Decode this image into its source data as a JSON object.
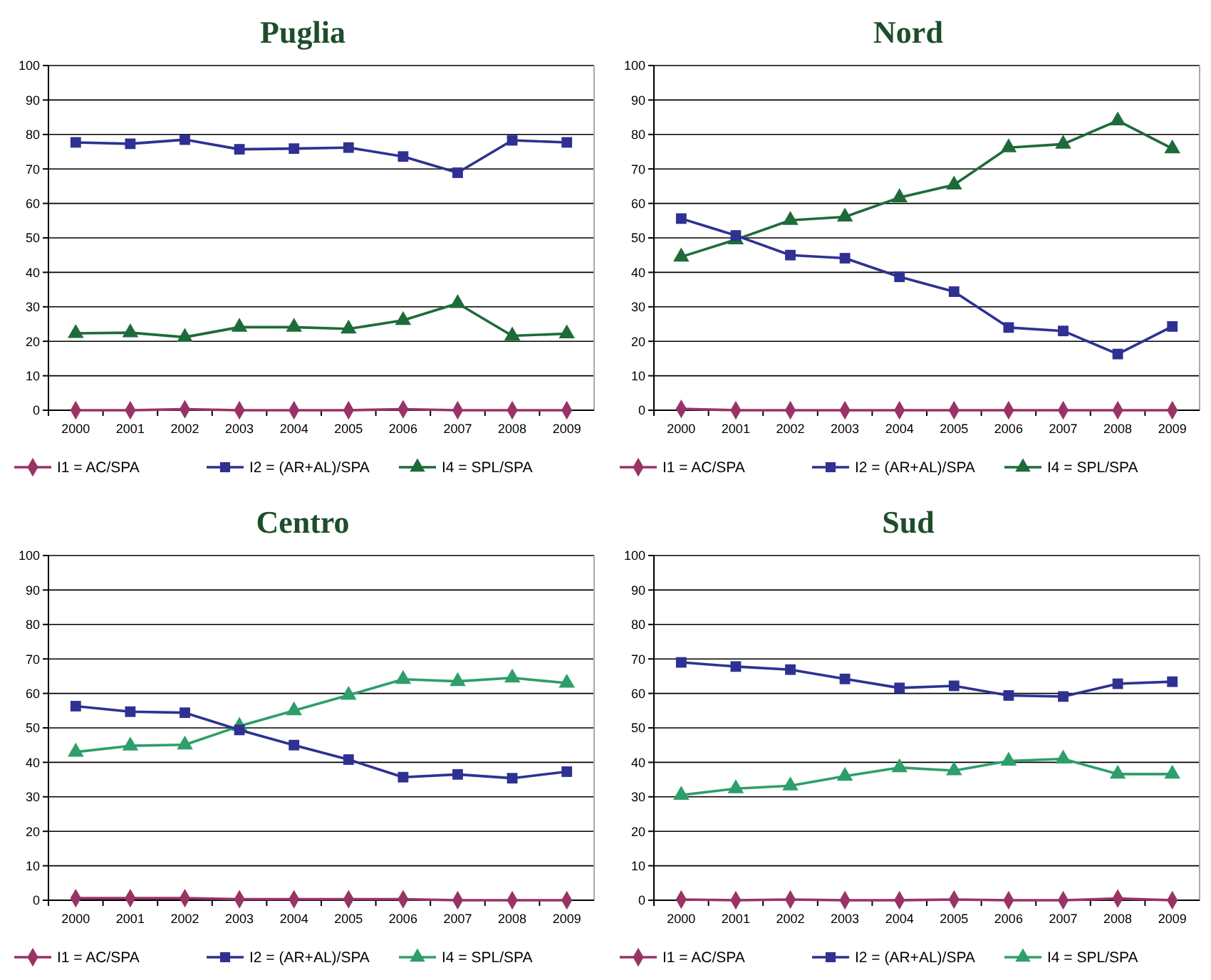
{
  "chart_data": [
    {
      "type": "line",
      "title": "Puglia",
      "categories": [
        "2000",
        "2001",
        "2002",
        "2003",
        "2004",
        "2005",
        "2006",
        "2007",
        "2008",
        "2009"
      ],
      "ylim": [
        0,
        100
      ],
      "yticks": [
        0,
        10,
        20,
        30,
        40,
        50,
        60,
        70,
        80,
        90,
        100
      ],
      "grid": "y",
      "legend": "bottom",
      "line_style": "solid",
      "series": [
        {
          "name": "I1 = AC/SPA",
          "color": "#993366",
          "marker": "diamond",
          "values": [
            0,
            0,
            0.3,
            0,
            0,
            0,
            0.3,
            0,
            0,
            0
          ]
        },
        {
          "name": "I2 = (AR+AL)/SPA",
          "color": "#2e3192",
          "marker": "square",
          "values": [
            77.7,
            77.3,
            78.5,
            75.7,
            75.9,
            76.2,
            73.6,
            68.9,
            78.3,
            77.7
          ]
        },
        {
          "name": "I4 = SPL/SPA",
          "color": "#1e6b3a",
          "marker": "triangle",
          "values": [
            22.3,
            22.5,
            21.2,
            24.1,
            24.1,
            23.6,
            26.1,
            31,
            21.6,
            22.2
          ]
        }
      ]
    },
    {
      "type": "line",
      "title": "Nord",
      "categories": [
        "2000",
        "2001",
        "2002",
        "2003",
        "2004",
        "2005",
        "2006",
        "2007",
        "2008",
        "2009"
      ],
      "ylim": [
        0,
        100
      ],
      "yticks": [
        0,
        10,
        20,
        30,
        40,
        50,
        60,
        70,
        80,
        90,
        100
      ],
      "grid": "y",
      "legend": "bottom",
      "line_style": "solid",
      "series": [
        {
          "name": "I1 = AC/SPA",
          "color": "#993366",
          "marker": "diamond",
          "values": [
            0.4,
            0,
            0,
            0,
            0,
            0,
            0,
            0,
            0,
            0
          ]
        },
        {
          "name": "I2 = (AR+AL)/SPA",
          "color": "#2e3192",
          "marker": "square",
          "values": [
            55.6,
            50.7,
            45,
            44.1,
            38.7,
            34.4,
            24,
            23,
            16.3,
            24.3
          ]
        },
        {
          "name": "I4 = SPL/SPA",
          "color": "#1e6b3a",
          "marker": "triangle",
          "values": [
            44.5,
            49.5,
            55.1,
            56.1,
            61.7,
            65.4,
            76.2,
            77.2,
            84,
            75.9
          ]
        }
      ]
    },
    {
      "type": "line",
      "title": "Centro",
      "categories": [
        "2000",
        "2001",
        "2002",
        "2003",
        "2004",
        "2005",
        "2006",
        "2007",
        "2008",
        "2009"
      ],
      "ylim": [
        0,
        100
      ],
      "yticks": [
        0,
        10,
        20,
        30,
        40,
        50,
        60,
        70,
        80,
        90,
        100
      ],
      "grid": "y",
      "legend": "bottom",
      "line_style": "solid",
      "series": [
        {
          "name": "I1 = AC/SPA",
          "color": "#993366",
          "marker": "diamond",
          "values": [
            0.6,
            0.6,
            0.6,
            0.3,
            0.3,
            0.3,
            0.3,
            0,
            0,
            0
          ]
        },
        {
          "name": "I2 = (AR+AL)/SPA",
          "color": "#2e3192",
          "marker": "square",
          "values": [
            56.3,
            54.7,
            54.4,
            49.4,
            45,
            40.8,
            35.7,
            36.5,
            35.4,
            37.3
          ]
        },
        {
          "name": "I4 = SPL/SPA",
          "color": "#2e9e6b",
          "marker": "triangle",
          "values": [
            43,
            44.8,
            45.1,
            50.5,
            55,
            59.5,
            64.1,
            63.5,
            64.5,
            63
          ]
        }
      ]
    },
    {
      "type": "line",
      "title": "Sud",
      "categories": [
        "2000",
        "2001",
        "2002",
        "2003",
        "2004",
        "2005",
        "2006",
        "2007",
        "2008",
        "2009"
      ],
      "ylim": [
        0,
        100
      ],
      "yticks": [
        0,
        10,
        20,
        30,
        40,
        50,
        60,
        70,
        80,
        90,
        100
      ],
      "grid": "y",
      "legend": "bottom",
      "line_style": "solid",
      "series": [
        {
          "name": "I1 = AC/SPA",
          "color": "#993366",
          "marker": "diamond",
          "values": [
            0.2,
            0,
            0.2,
            0,
            0,
            0.2,
            0,
            0,
            0.5,
            0
          ]
        },
        {
          "name": "I2 = (AR+AL)/SPA",
          "color": "#2e3192",
          "marker": "square",
          "values": [
            69,
            67.8,
            66.9,
            64.2,
            61.6,
            62.2,
            59.4,
            59.1,
            62.8,
            63.4
          ]
        },
        {
          "name": "I4 = SPL/SPA",
          "color": "#2e9e6b",
          "marker": "triangle",
          "values": [
            30.5,
            32.4,
            33.2,
            36,
            38.5,
            37.6,
            40.4,
            41,
            36.6,
            36.6
          ]
        }
      ]
    }
  ]
}
